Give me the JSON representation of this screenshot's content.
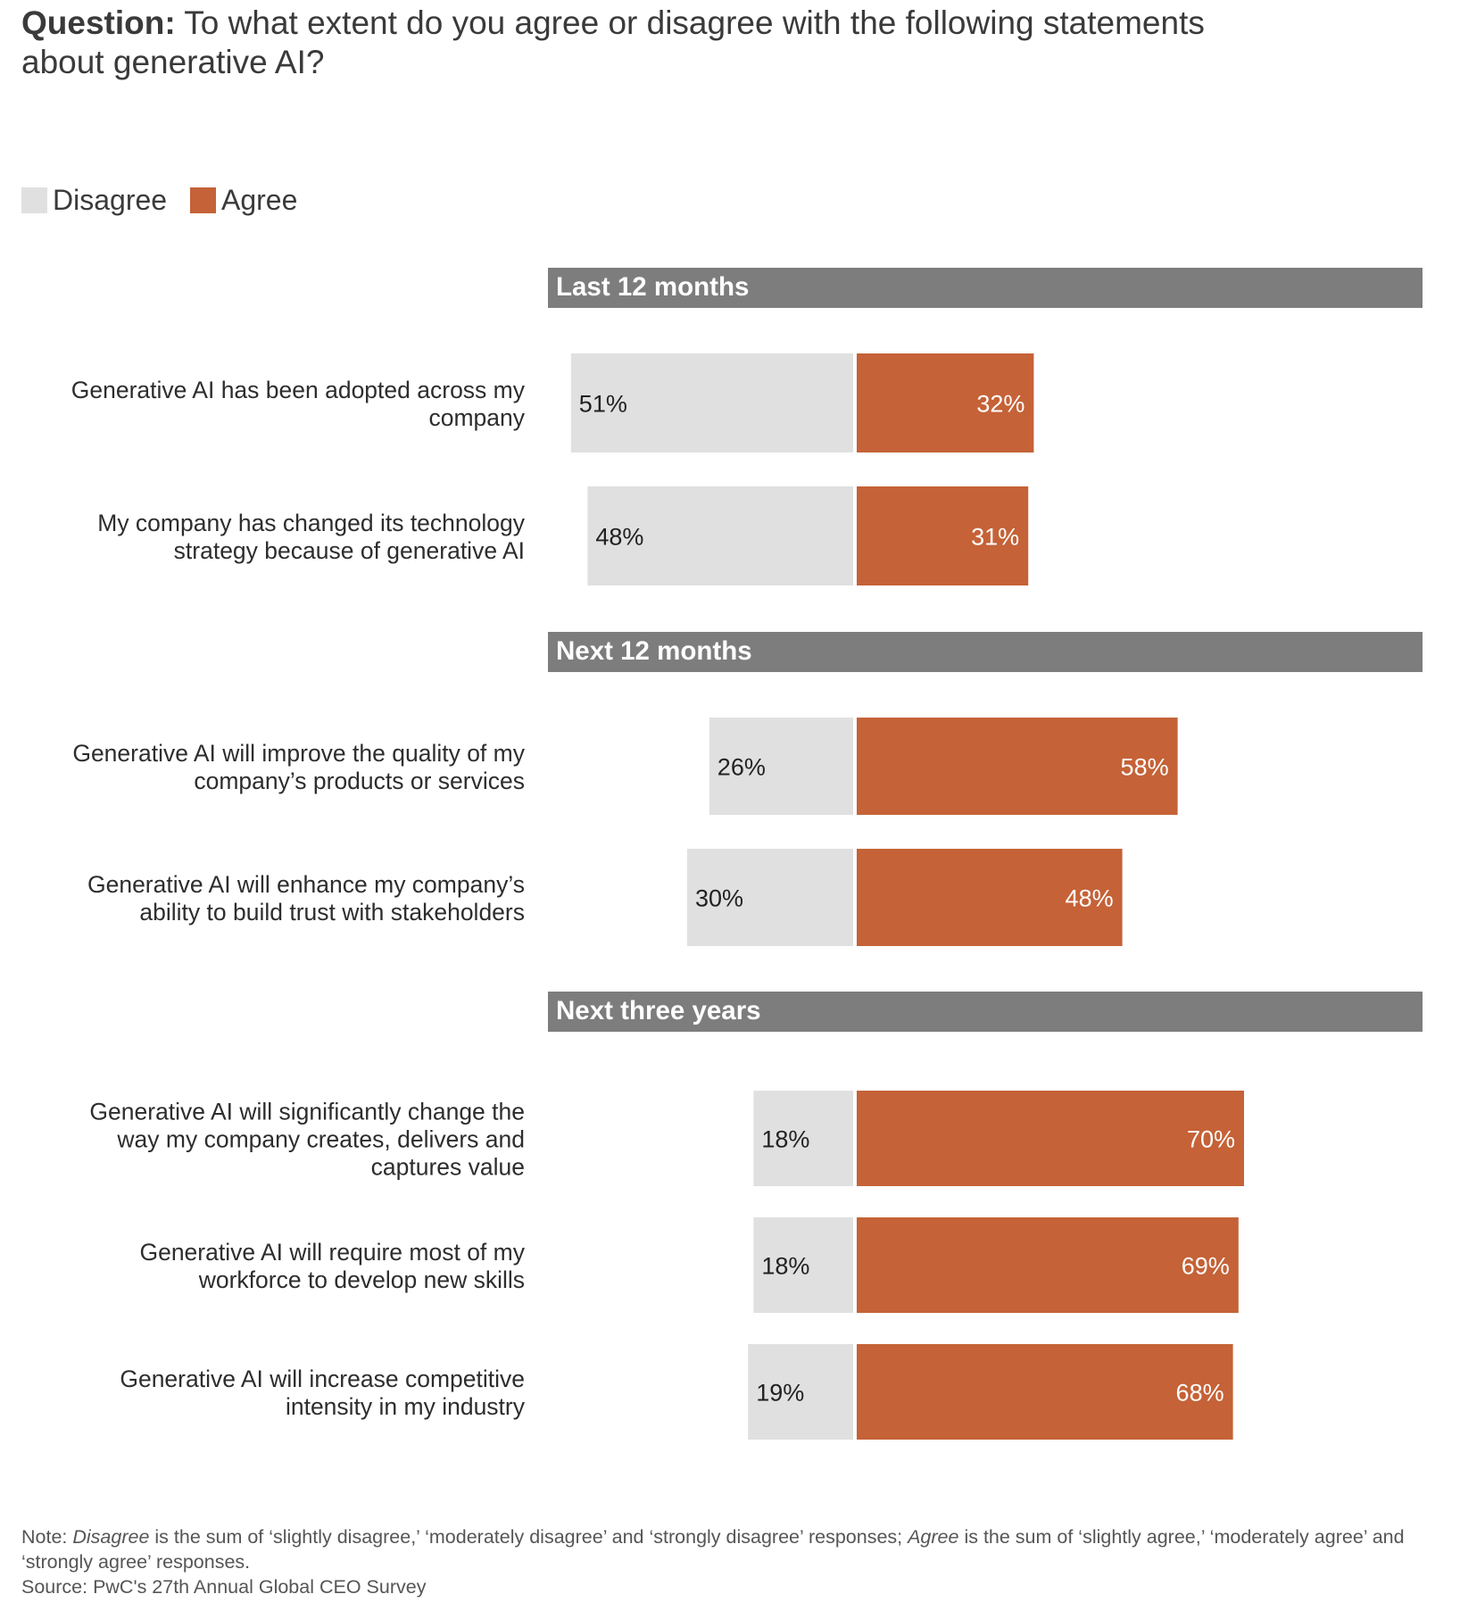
{
  "question": {
    "label": "Question:",
    "text": "To what extent do you agree or disagree with the following statements about generative AI?"
  },
  "legend": [
    {
      "name": "Disagree",
      "color": "#e0e0e0"
    },
    {
      "name": "Agree",
      "color": "#c56237"
    }
  ],
  "colors": {
    "disagree": "#e0e0e0",
    "agree": "#c56237",
    "section_header_bg": "#7d7d7d",
    "section_header_text": "#ffffff"
  },
  "chart_data": {
    "type": "bar",
    "orientation": "horizontal",
    "layout": "diverging",
    "value_unit": "%",
    "series": [
      {
        "name": "Disagree",
        "direction": "left"
      },
      {
        "name": "Agree",
        "direction": "right"
      }
    ],
    "sections": [
      {
        "title": "Last 12 months",
        "rows": [
          {
            "label": [
              "Generative AI has been adopted across my",
              "company"
            ],
            "disagree": 51,
            "agree": 32
          },
          {
            "label": [
              "My company has changed its technology",
              "strategy because of generative AI"
            ],
            "disagree": 48,
            "agree": 31
          }
        ]
      },
      {
        "title": "Next 12 months",
        "rows": [
          {
            "label": [
              "Generative AI will improve the quality of my",
              "company’s products or services"
            ],
            "disagree": 26,
            "agree": 58
          },
          {
            "label": [
              "Generative AI will enhance my company’s",
              "ability to build trust with stakeholders"
            ],
            "disagree": 30,
            "agree": 48
          }
        ]
      },
      {
        "title": "Next three years",
        "rows": [
          {
            "label": [
              "Generative AI will significantly change the",
              "way my company creates, delivers and",
              "captures value"
            ],
            "disagree": 18,
            "agree": 70
          },
          {
            "label": [
              "Generative AI will require most of my",
              "workforce to develop new skills"
            ],
            "disagree": 18,
            "agree": 69
          },
          {
            "label": [
              "Generative AI will increase competitive",
              "intensity in my industry"
            ],
            "disagree": 19,
            "agree": 68
          }
        ]
      }
    ]
  },
  "notes": {
    "note_prefix": "Note: ",
    "note_term_disagree": "Disagree",
    "note_mid1": " is the sum of ‘slightly disagree,’ ‘moderately disagree’ and ‘strongly disagree’ responses; ",
    "note_term_agree": "Agree",
    "note_mid2": " is the sum of ‘slightly agree,’ ‘moderately agree’ and ‘strongly agree’ responses.",
    "source": "Source: PwC's 27th Annual Global CEO Survey"
  }
}
